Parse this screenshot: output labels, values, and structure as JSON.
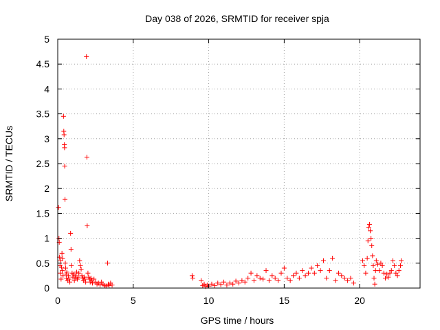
{
  "chart_data": {
    "type": "scatter",
    "title": "Day 038 of 2026, SRMTID for receiver spja",
    "xlabel": "GPS time / hours",
    "ylabel": "SRMTID / TECUs",
    "xlim": [
      0,
      24
    ],
    "ylim": [
      0,
      5
    ],
    "xticks": [
      0,
      5,
      10,
      15,
      20
    ],
    "xtick_labels": [
      "0",
      "5",
      "10",
      "15",
      "20"
    ],
    "yticks": [
      0,
      0.5,
      1,
      1.5,
      2,
      2.5,
      3,
      3.5,
      4,
      4.5,
      5
    ],
    "ytick_labels": [
      "0",
      "0.5",
      "1",
      "1.5",
      "2",
      "2.5",
      "3",
      "3.5",
      "4",
      "4.5",
      "5"
    ],
    "grid": true,
    "marker": "+",
    "color": "#ff0000",
    "series": [
      {
        "name": "SRMTID",
        "points": [
          [
            0.05,
            1.62
          ],
          [
            0.08,
            1.0
          ],
          [
            0.1,
            0.92
          ],
          [
            0.12,
            0.62
          ],
          [
            0.15,
            0.45
          ],
          [
            0.18,
            0.3
          ],
          [
            0.2,
            0.55
          ],
          [
            0.22,
            0.18
          ],
          [
            0.25,
            0.42
          ],
          [
            0.28,
            0.7
          ],
          [
            0.3,
            0.35
          ],
          [
            0.32,
            0.6
          ],
          [
            0.35,
            0.25
          ],
          [
            0.38,
            3.45
          ],
          [
            0.4,
            3.15
          ],
          [
            0.42,
            3.08
          ],
          [
            0.44,
            2.88
          ],
          [
            0.45,
            2.82
          ],
          [
            0.46,
            2.45
          ],
          [
            0.48,
            1.78
          ],
          [
            0.5,
            0.5
          ],
          [
            0.52,
            0.4
          ],
          [
            0.55,
            0.28
          ],
          [
            0.58,
            0.2
          ],
          [
            0.6,
            0.32
          ],
          [
            0.65,
            0.15
          ],
          [
            0.7,
            0.25
          ],
          [
            0.75,
            0.18
          ],
          [
            0.8,
            0.12
          ],
          [
            0.85,
            1.1
          ],
          [
            0.88,
            0.78
          ],
          [
            0.9,
            0.45
          ],
          [
            0.95,
            0.3
          ],
          [
            1.0,
            0.22
          ],
          [
            1.05,
            0.28
          ],
          [
            1.1,
            0.15
          ],
          [
            1.15,
            0.25
          ],
          [
            1.2,
            0.2
          ],
          [
            1.25,
            0.32
          ],
          [
            1.3,
            0.18
          ],
          [
            1.35,
            0.22
          ],
          [
            1.4,
            0.3
          ],
          [
            1.45,
            0.55
          ],
          [
            1.5,
            0.45
          ],
          [
            1.55,
            0.38
          ],
          [
            1.6,
            0.25
          ],
          [
            1.65,
            0.2
          ],
          [
            1.7,
            0.15
          ],
          [
            1.75,
            0.22
          ],
          [
            1.8,
            0.18
          ],
          [
            1.85,
            0.12
          ],
          [
            1.9,
            4.65
          ],
          [
            1.93,
            2.63
          ],
          [
            1.95,
            1.25
          ],
          [
            2.0,
            0.3
          ],
          [
            2.05,
            0.22
          ],
          [
            2.1,
            0.18
          ],
          [
            2.15,
            0.12
          ],
          [
            2.2,
            0.2
          ],
          [
            2.25,
            0.15
          ],
          [
            2.3,
            0.1
          ],
          [
            2.4,
            0.18
          ],
          [
            2.5,
            0.12
          ],
          [
            2.6,
            0.08
          ],
          [
            2.7,
            0.1
          ],
          [
            2.8,
            0.06
          ],
          [
            2.9,
            0.12
          ],
          [
            3.0,
            0.08
          ],
          [
            3.1,
            0.05
          ],
          [
            3.2,
            0.04
          ],
          [
            3.3,
            0.5
          ],
          [
            3.35,
            0.08
          ],
          [
            3.4,
            0.05
          ],
          [
            3.5,
            0.1
          ],
          [
            3.6,
            0.06
          ],
          [
            8.9,
            0.25
          ],
          [
            8.95,
            0.2
          ],
          [
            9.5,
            0.15
          ],
          [
            9.6,
            0.05
          ],
          [
            9.7,
            0.08
          ],
          [
            9.8,
            0.03
          ],
          [
            9.9,
            0.06
          ],
          [
            10.0,
            0.04
          ],
          [
            10.2,
            0.08
          ],
          [
            10.4,
            0.05
          ],
          [
            10.6,
            0.1
          ],
          [
            10.8,
            0.07
          ],
          [
            11.0,
            0.12
          ],
          [
            11.2,
            0.06
          ],
          [
            11.4,
            0.1
          ],
          [
            11.6,
            0.08
          ],
          [
            11.8,
            0.14
          ],
          [
            12.0,
            0.1
          ],
          [
            12.2,
            0.15
          ],
          [
            12.4,
            0.12
          ],
          [
            12.6,
            0.2
          ],
          [
            12.8,
            0.3
          ],
          [
            13.0,
            0.15
          ],
          [
            13.2,
            0.25
          ],
          [
            13.4,
            0.2
          ],
          [
            13.6,
            0.18
          ],
          [
            13.8,
            0.35
          ],
          [
            14.0,
            0.15
          ],
          [
            14.2,
            0.25
          ],
          [
            14.4,
            0.2
          ],
          [
            14.6,
            0.15
          ],
          [
            14.8,
            0.3
          ],
          [
            15.0,
            0.4
          ],
          [
            15.2,
            0.2
          ],
          [
            15.4,
            0.15
          ],
          [
            15.6,
            0.25
          ],
          [
            15.8,
            0.3
          ],
          [
            16.0,
            0.2
          ],
          [
            16.2,
            0.35
          ],
          [
            16.4,
            0.25
          ],
          [
            16.6,
            0.3
          ],
          [
            16.8,
            0.4
          ],
          [
            17.0,
            0.3
          ],
          [
            17.2,
            0.45
          ],
          [
            17.4,
            0.35
          ],
          [
            17.6,
            0.55
          ],
          [
            17.8,
            0.2
          ],
          [
            18.0,
            0.35
          ],
          [
            18.2,
            0.6
          ],
          [
            18.4,
            0.15
          ],
          [
            18.6,
            0.3
          ],
          [
            18.8,
            0.25
          ],
          [
            19.0,
            0.2
          ],
          [
            19.2,
            0.15
          ],
          [
            19.4,
            0.2
          ],
          [
            19.6,
            0.1
          ],
          [
            20.2,
            0.55
          ],
          [
            20.3,
            0.45
          ],
          [
            20.4,
            0.3
          ],
          [
            20.5,
            0.6
          ],
          [
            20.55,
            0.95
          ],
          [
            20.6,
            1.22
          ],
          [
            20.65,
            1.28
          ],
          [
            20.7,
            1.15
          ],
          [
            20.75,
            1.0
          ],
          [
            20.8,
            0.85
          ],
          [
            20.85,
            0.65
          ],
          [
            20.9,
            0.45
          ],
          [
            20.95,
            0.2
          ],
          [
            21.0,
            0.08
          ],
          [
            21.05,
            0.35
          ],
          [
            21.1,
            0.55
          ],
          [
            21.2,
            0.48
          ],
          [
            21.3,
            0.35
          ],
          [
            21.4,
            0.5
          ],
          [
            21.5,
            0.45
          ],
          [
            21.6,
            0.3
          ],
          [
            21.7,
            0.2
          ],
          [
            21.8,
            0.28
          ],
          [
            21.9,
            0.22
          ],
          [
            22.0,
            0.3
          ],
          [
            22.1,
            0.35
          ],
          [
            22.2,
            0.55
          ],
          [
            22.3,
            0.45
          ],
          [
            22.4,
            0.3
          ],
          [
            22.5,
            0.25
          ],
          [
            22.6,
            0.35
          ],
          [
            22.7,
            0.45
          ],
          [
            22.75,
            0.55
          ]
        ]
      }
    ]
  }
}
